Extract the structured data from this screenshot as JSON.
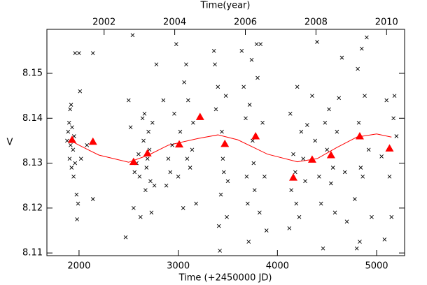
{
  "chart_data": {
    "type": "scatter",
    "title": "Time(year)",
    "xlabel": "Time (+2450000 JD)",
    "ylabel": "V",
    "xlim": [
      1676,
      5282
    ],
    "xticks": [
      2000,
      3000,
      4000,
      5000
    ],
    "ylim": [
      8.1094,
      8.1598
    ],
    "yticks": [
      8.11,
      8.12,
      8.13,
      8.14,
      8.15
    ],
    "x2lim": [
      2000.38,
      2010.51
    ],
    "x2ticks": [
      2002,
      2004,
      2006,
      2008,
      2010
    ],
    "grid": false,
    "series": [
      {
        "marker": "x",
        "color": "#000000",
        "x": [
          1880,
          1890,
          1900,
          1905,
          1910,
          1915,
          1920,
          1925,
          1930,
          1940,
          1945,
          1950,
          1960,
          1960,
          1975,
          1980,
          1990,
          2000,
          2010,
          2020,
          2080,
          2140,
          2140,
          2470,
          2500,
          2520,
          2540,
          2550,
          2560,
          2580,
          2600,
          2610,
          2620,
          2640,
          2650,
          2660,
          2670,
          2680,
          2690,
          2700,
          2710,
          2720,
          2730,
          2740,
          2760,
          2780,
          2850,
          2880,
          2900,
          2920,
          2940,
          2960,
          2980,
          3000,
          3020,
          3050,
          3060,
          3080,
          3090,
          3100,
          3120,
          3140,
          3150,
          3180,
          3360,
          3370,
          3380,
          3400,
          3410,
          3420,
          3430,
          3440,
          3450,
          3460,
          3480,
          3490,
          3500,
          3640,
          3660,
          3680,
          3690,
          3700,
          3710,
          3720,
          3740,
          3750,
          3760,
          3770,
          3790,
          3800,
          3820,
          3830,
          3850,
          3870,
          3890,
          4120,
          4130,
          4140,
          4160,
          4180,
          4190,
          4200,
          4220,
          4240,
          4260,
          4280,
          4300,
          4350,
          4380,
          4400,
          4420,
          4440,
          4460,
          4480,
          4500,
          4520,
          4540,
          4560,
          4580,
          4600,
          4620,
          4650,
          4680,
          4700,
          4780,
          4800,
          4810,
          4820,
          4830,
          4840,
          4850,
          4860,
          4880,
          4900,
          4920,
          4950,
          5050,
          5080,
          5100,
          5130,
          5150,
          5170,
          5180,
          5200
        ],
        "values": [
          8.135,
          8.137,
          8.139,
          8.131,
          8.142,
          8.134,
          8.143,
          8.129,
          8.138,
          8.133,
          8.127,
          8.136,
          8.13,
          8.1545,
          8.123,
          8.1175,
          8.121,
          8.1545,
          8.146,
          8.131,
          8.134,
          8.1545,
          8.122,
          8.1135,
          8.144,
          8.138,
          8.1585,
          8.12,
          8.128,
          8.13,
          8.132,
          8.127,
          8.118,
          8.14,
          8.135,
          8.141,
          8.124,
          8.129,
          8.131,
          8.137,
          8.133,
          8.126,
          8.119,
          8.139,
          8.125,
          8.152,
          8.144,
          8.125,
          8.131,
          8.128,
          8.134,
          8.141,
          8.1565,
          8.127,
          8.137,
          8.12,
          8.148,
          8.152,
          8.131,
          8.144,
          8.129,
          8.133,
          8.139,
          8.121,
          8.155,
          8.152,
          8.142,
          8.147,
          8.116,
          8.1105,
          8.123,
          8.137,
          8.131,
          8.128,
          8.145,
          8.118,
          8.126,
          8.155,
          8.147,
          8.14,
          8.127,
          8.121,
          8.1125,
          8.143,
          8.153,
          8.135,
          8.13,
          8.124,
          8.1565,
          8.149,
          8.119,
          8.1565,
          8.139,
          8.127,
          8.115,
          8.1155,
          8.141,
          8.124,
          8.132,
          8.128,
          8.121,
          8.147,
          8.118,
          8.137,
          8.131,
          8.126,
          8.1385,
          8.145,
          8.135,
          8.157,
          8.127,
          8.121,
          8.111,
          8.139,
          8.133,
          8.142,
          8.1255,
          8.129,
          8.119,
          8.137,
          8.1445,
          8.1535,
          8.128,
          8.117,
          8.122,
          8.111,
          8.151,
          8.139,
          8.1125,
          8.129,
          8.1555,
          8.127,
          8.145,
          8.158,
          8.133,
          8.118,
          8.1315,
          8.113,
          8.144,
          8.127,
          8.118,
          8.14,
          8.145,
          8.136
        ]
      },
      {
        "marker": "triangle",
        "color": "#ff0000",
        "x": [
          1930,
          2140,
          2550,
          2690,
          3010,
          3220,
          3470,
          3780,
          4160,
          4350,
          4540,
          4830,
          5130
        ],
        "values": [
          8.1352,
          8.1348,
          8.1303,
          8.1322,
          8.1342,
          8.1403,
          8.1343,
          8.136,
          8.1268,
          8.1308,
          8.1318,
          8.136,
          8.1333
        ]
      },
      {
        "marker": "line",
        "color": "#ff0000",
        "x": [
          1900,
          2000,
          2200,
          2500,
          2700,
          2900,
          3200,
          3400,
          3600,
          3900,
          4200,
          4400,
          4600,
          4800,
          5000,
          5150
        ],
        "values": [
          8.1352,
          8.134,
          8.1318,
          8.1302,
          8.1318,
          8.134,
          8.1355,
          8.1363,
          8.1352,
          8.132,
          8.1303,
          8.131,
          8.1335,
          8.1358,
          8.1365,
          8.1358
        ]
      }
    ]
  }
}
